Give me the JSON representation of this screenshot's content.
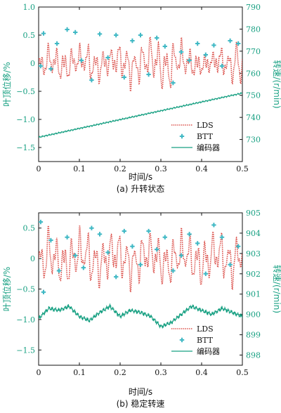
{
  "chart_data": [
    {
      "type": "line",
      "caption": "(a) 升转状态",
      "xlabel": "时间/s",
      "ylabel_left": "叶顶位移/%",
      "ylabel_right": "转速/(r/min)",
      "xlim": [
        0,
        0.5
      ],
      "ylim_left": [
        -1.75,
        1.0
      ],
      "ylim_right": [
        720,
        790
      ],
      "x_ticks": [
        "0",
        "0.1",
        "0.2",
        "0.3",
        "0.4",
        "0.5"
      ],
      "y_left_ticks": [
        "1.0",
        "0.5",
        "0",
        "−0.5",
        "−1.0",
        "−1.5"
      ],
      "y_right_ticks": [
        "790",
        "780",
        "770",
        "760",
        "750",
        "740",
        "730"
      ],
      "legend": [
        "LDS",
        "BTT",
        "编码器"
      ],
      "legend_position": "lower-right",
      "series": [
        {
          "name": "LDS",
          "axis": "left",
          "style": "dotted",
          "color": "#d9453f",
          "description": "oscillation about 0 with amplitude ~0.3–0.6 % over 0–0.5 s",
          "x": [
            0,
            0.025,
            0.05,
            0.075,
            0.1,
            0.125,
            0.15,
            0.175,
            0.2,
            0.225,
            0.25,
            0.275,
            0.3,
            0.325,
            0.35,
            0.375,
            0.4,
            0.425,
            0.45,
            0.475,
            0.5
          ],
          "y": [
            0.0,
            0.3,
            -0.35,
            0.35,
            -0.3,
            0.4,
            -0.35,
            0.3,
            -0.4,
            0.45,
            -0.45,
            0.5,
            -0.55,
            0.55,
            -0.4,
            0.3,
            -0.2,
            0.2,
            -0.3,
            0.3,
            0.3
          ]
        },
        {
          "name": "BTT",
          "axis": "left",
          "style": "markers",
          "color": "#3fb8c4",
          "x": [
            0.005,
            0.012,
            0.03,
            0.045,
            0.07,
            0.09,
            0.105,
            0.13,
            0.15,
            0.17,
            0.19,
            0.21,
            0.23,
            0.25,
            0.27,
            0.29,
            0.31,
            0.33,
            0.35,
            0.37,
            0.39,
            0.41,
            0.43,
            0.45,
            0.47,
            0.49
          ],
          "y": [
            -0.05,
            0.53,
            -0.1,
            0.35,
            0.6,
            0.55,
            0.05,
            -0.3,
            0.52,
            0.1,
            0.5,
            -0.25,
            0.4,
            0.5,
            -0.2,
            0.45,
            0.3,
            -0.35,
            0.2,
            0.05,
            0.35,
            0.15,
            0.32,
            -0.05,
            0.4,
            0.35
          ]
        },
        {
          "name": "编码器",
          "axis": "right",
          "style": "solid",
          "color": "#17a082",
          "x": [
            0,
            0.05,
            0.1,
            0.15,
            0.2,
            0.25,
            0.3,
            0.35,
            0.4,
            0.45,
            0.5
          ],
          "y": [
            731,
            733,
            735,
            737,
            739,
            741,
            743,
            745,
            747,
            749,
            751
          ]
        }
      ]
    },
    {
      "type": "line",
      "caption": "(b) 稳定转速",
      "xlabel": "时间/s",
      "ylabel_left": "叶顶位移/%",
      "ylabel_right": "转速/(r/min)",
      "xlim": [
        0,
        0.5
      ],
      "ylim_left": [
        -1.75,
        0.75
      ],
      "ylim_right": [
        897.5,
        905
      ],
      "x_ticks": [
        "0",
        "0.1",
        "0.2",
        "0.3",
        "0.4",
        "0.5"
      ],
      "y_left_ticks": [
        "0.5",
        "0",
        "−0.5",
        "−1.0",
        "−1.5"
      ],
      "y_right_ticks": [
        "905",
        "904",
        "903",
        "902",
        "901",
        "900",
        "899",
        "898"
      ],
      "legend": [
        "LDS",
        "BTT",
        "编码器"
      ],
      "legend_position": "lower-right",
      "series": [
        {
          "name": "LDS",
          "axis": "left",
          "style": "dotted",
          "color": "#d9453f",
          "description": "oscillation about 0 with amplitude ~0.5 % over 0–0.5 s",
          "x": [
            0,
            0.025,
            0.05,
            0.075,
            0.1,
            0.125,
            0.15,
            0.175,
            0.2,
            0.225,
            0.25,
            0.275,
            0.3,
            0.325,
            0.35,
            0.375,
            0.4,
            0.425,
            0.45,
            0.475,
            0.5
          ],
          "y": [
            0.0,
            0.5,
            -0.5,
            0.5,
            -0.5,
            0.55,
            -0.5,
            0.5,
            -0.5,
            0.5,
            -0.5,
            0.45,
            -0.5,
            0.5,
            -0.45,
            0.5,
            -0.5,
            0.5,
            -0.5,
            0.45,
            0.0
          ]
        },
        {
          "name": "BTT",
          "axis": "left",
          "style": "markers",
          "color": "#3fb8c4",
          "x": [
            0.005,
            0.012,
            0.03,
            0.05,
            0.07,
            0.09,
            0.11,
            0.13,
            0.15,
            0.17,
            0.19,
            0.21,
            0.23,
            0.25,
            0.27,
            0.29,
            0.31,
            0.33,
            0.35,
            0.37,
            0.39,
            0.41,
            0.43,
            0.45,
            0.47,
            0.49
          ],
          "y": [
            0.6,
            -0.55,
            0.3,
            -0.2,
            0.35,
            0.05,
            -0.15,
            0.5,
            0.4,
            0.1,
            -0.3,
            0.45,
            0.2,
            -0.1,
            0.45,
            0.15,
            0.35,
            -0.2,
            0.05,
            0.4,
            0.25,
            -0.25,
            0.55,
            0.35,
            -0.1,
            0.2
          ]
        },
        {
          "name": "编码器",
          "axis": "right",
          "style": "solid",
          "color": "#17a082",
          "x": [
            0,
            0.025,
            0.05,
            0.075,
            0.1,
            0.125,
            0.15,
            0.175,
            0.2,
            0.225,
            0.25,
            0.275,
            0.3,
            0.325,
            0.35,
            0.375,
            0.4,
            0.425,
            0.45,
            0.475,
            0.5
          ],
          "y": [
            899.8,
            900.3,
            900.2,
            900.4,
            899.9,
            899.7,
            900.1,
            900.4,
            899.9,
            900.2,
            900.1,
            899.9,
            899.4,
            899.6,
            900.0,
            900.4,
            900.2,
            900.0,
            900.3,
            900.1,
            899.9
          ]
        }
      ]
    }
  ]
}
